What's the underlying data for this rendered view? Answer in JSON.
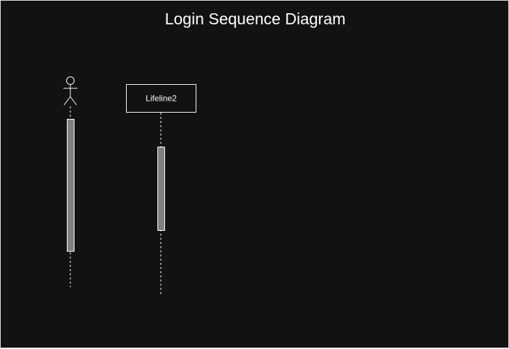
{
  "diagram": {
    "title": "Login Sequence Diagram",
    "lifeline2_label": "Lifeline2",
    "colors": {
      "background": "#121212",
      "stroke": "#ffffff",
      "activation_fill": "#808080",
      "text": "#ffffff"
    }
  }
}
